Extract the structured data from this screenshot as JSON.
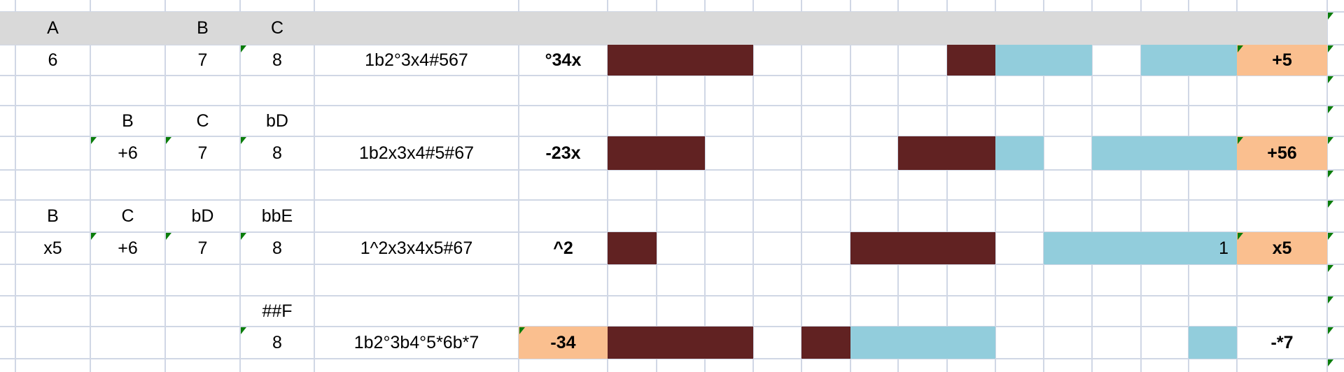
{
  "colors": {
    "header_band": "#d9d9d9",
    "grid": "#d0d7e5",
    "brown": "#612222",
    "blue": "#92cddc",
    "orange": "#fabf8f",
    "comment_marker": "#0a7d0a"
  },
  "header_row": {
    "c0": "A",
    "c2": "B",
    "c3": "C"
  },
  "blocks": [
    {
      "labels": {},
      "notes": {
        "c0": "6",
        "c2": "7",
        "c3": "8"
      },
      "formula": "1b2°3x4#567",
      "code": "°34x",
      "code_orange": false,
      "fills": {
        "brown": [
          0,
          1,
          2,
          7
        ],
        "blue": [
          8,
          9,
          11,
          12
        ]
      },
      "blue_text": "",
      "result": "+5",
      "result_orange": true
    },
    {
      "labels": {
        "c1": "B",
        "c2": "C",
        "c3": "bD"
      },
      "notes": {
        "c1": "+6",
        "c2": "7",
        "c3": "8"
      },
      "formula": "1b2x3x4#5#67",
      "code": "-23x",
      "code_orange": false,
      "fills": {
        "brown": [
          0,
          1,
          6,
          7
        ],
        "blue": [
          8,
          10,
          11,
          12
        ]
      },
      "blue_text": "",
      "result": "+56",
      "result_orange": true
    },
    {
      "labels": {
        "c0": "B",
        "c1": "C",
        "c2": "bD",
        "c3": "bbE"
      },
      "notes": {
        "c0": "x5",
        "c1": "+6",
        "c2": "7",
        "c3": "8"
      },
      "formula": "1^2x3x4x5#67",
      "code": "^2",
      "code_orange": false,
      "fills": {
        "brown": [
          0,
          5,
          6,
          7
        ],
        "blue": [
          9,
          10,
          11,
          12
        ]
      },
      "blue_text": "1",
      "result": "x5",
      "result_orange": true
    },
    {
      "labels": {
        "c3": "##F"
      },
      "notes": {
        "c3": "8"
      },
      "formula": "1b2°3b4°5*6b*7",
      "code": "-34",
      "code_orange": true,
      "fills": {
        "brown": [
          0,
          1,
          2,
          4
        ],
        "blue": [
          5,
          6,
          7,
          12
        ]
      },
      "blue_text": "",
      "result": "-*7",
      "result_orange": false
    }
  ]
}
